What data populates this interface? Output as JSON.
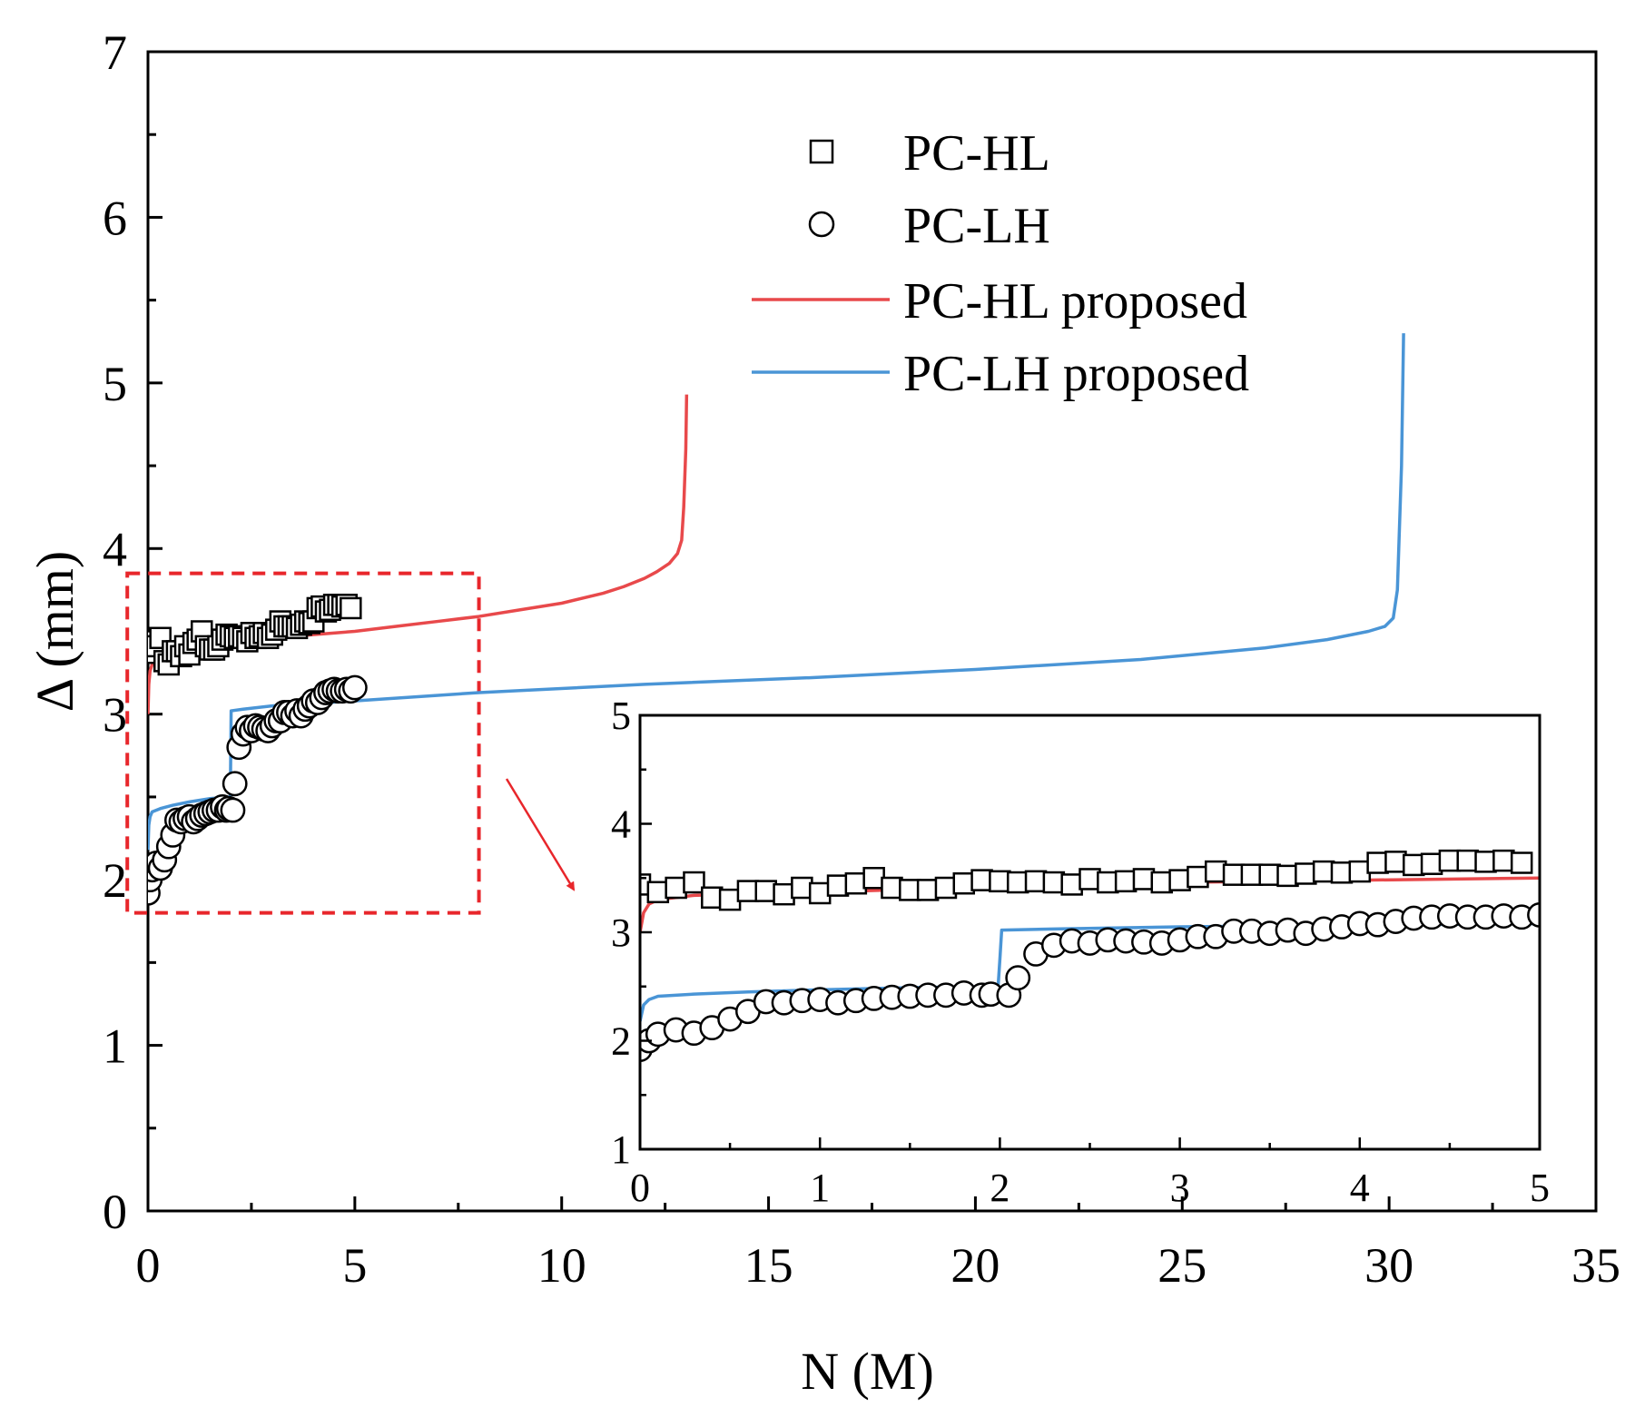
{
  "chart_data": {
    "type": "scatter",
    "main": {
      "xlabel": "N (M)",
      "ylabel": "Δ (mm)",
      "xlim": [
        0,
        35
      ],
      "ylim": [
        0,
        7
      ],
      "x_ticks": [
        "0",
        "5",
        "10",
        "15",
        "20",
        "25",
        "30",
        "35"
      ],
      "y_ticks": [
        "0",
        "1",
        "2",
        "3",
        "4",
        "5",
        "6",
        "7"
      ],
      "legend": {
        "position": "top-right",
        "entries": [
          {
            "label": "PC-HL",
            "marker": "square"
          },
          {
            "label": "PC-LH",
            "marker": "circle"
          },
          {
            "label": "PC-HL proposed",
            "marker": "line",
            "color": "#e8494b"
          },
          {
            "label": "PC-LH proposed",
            "marker": "line",
            "color": "#4a95d6"
          }
        ]
      }
    },
    "inset": {
      "xlim": [
        0,
        5
      ],
      "ylim": [
        1,
        5
      ],
      "x_ticks": [
        "0",
        "1",
        "2",
        "3",
        "4",
        "5"
      ],
      "y_ticks": [
        "1",
        "2",
        "3",
        "4",
        "5"
      ]
    },
    "zoom_box": {
      "x_range": [
        -0.5,
        8
      ],
      "y_range": [
        1.8,
        3.85
      ],
      "color": "#e8262b"
    },
    "series": [
      {
        "name": "PC-HL",
        "kind": "marker",
        "marker": "square",
        "x": [
          0.0,
          0.1,
          0.2,
          0.3,
          0.4,
          0.5,
          0.6,
          0.7,
          0.8,
          0.9,
          1.0,
          1.1,
          1.2,
          1.3,
          1.4,
          1.5,
          1.6,
          1.7,
          1.8,
          1.9,
          2.0,
          2.1,
          2.2,
          2.3,
          2.4,
          2.5,
          2.6,
          2.7,
          2.8,
          2.9,
          3.0,
          3.1,
          3.2,
          3.3,
          3.4,
          3.5,
          3.6,
          3.7,
          3.8,
          3.9,
          4.0,
          4.1,
          4.2,
          4.3,
          4.4,
          4.5,
          4.6,
          4.7,
          4.8,
          4.9
        ],
        "y": [
          3.44,
          3.37,
          3.41,
          3.46,
          3.32,
          3.3,
          3.38,
          3.38,
          3.35,
          3.41,
          3.36,
          3.43,
          3.45,
          3.5,
          3.41,
          3.39,
          3.39,
          3.41,
          3.45,
          3.48,
          3.47,
          3.46,
          3.47,
          3.46,
          3.44,
          3.49,
          3.46,
          3.47,
          3.49,
          3.46,
          3.48,
          3.51,
          3.56,
          3.53,
          3.53,
          3.53,
          3.52,
          3.54,
          3.56,
          3.55,
          3.56,
          3.64,
          3.65,
          3.62,
          3.63,
          3.66,
          3.66,
          3.65,
          3.66,
          3.64
        ]
      },
      {
        "name": "PC-LH",
        "kind": "marker",
        "marker": "circle",
        "x": [
          0.0,
          0.05,
          0.1,
          0.2,
          0.3,
          0.4,
          0.5,
          0.6,
          0.7,
          0.8,
          0.9,
          1.0,
          1.1,
          1.2,
          1.3,
          1.4,
          1.5,
          1.6,
          1.7,
          1.8,
          1.9,
          1.95,
          2.05,
          2.1,
          2.2,
          2.3,
          2.4,
          2.5,
          2.6,
          2.7,
          2.8,
          2.9,
          3.0,
          3.1,
          3.2,
          3.3,
          3.4,
          3.5,
          3.6,
          3.7,
          3.8,
          3.9,
          4.0,
          4.1,
          4.2,
          4.3,
          4.4,
          4.5,
          4.6,
          4.7,
          4.8,
          4.9,
          5.0
        ],
        "y": [
          1.92,
          2.0,
          2.06,
          2.1,
          2.07,
          2.12,
          2.2,
          2.27,
          2.36,
          2.35,
          2.37,
          2.38,
          2.35,
          2.37,
          2.39,
          2.4,
          2.41,
          2.42,
          2.42,
          2.44,
          2.42,
          2.43,
          2.42,
          2.58,
          2.8,
          2.88,
          2.92,
          2.9,
          2.93,
          2.92,
          2.91,
          2.9,
          2.93,
          2.96,
          2.96,
          3.01,
          3.01,
          2.99,
          3.02,
          2.99,
          3.03,
          3.05,
          3.08,
          3.07,
          3.1,
          3.13,
          3.14,
          3.15,
          3.14,
          3.14,
          3.15,
          3.14,
          3.16
        ]
      },
      {
        "name": "PC-HL proposed",
        "kind": "line",
        "color": "#e8494b",
        "x": [
          0.0,
          0.02,
          0.05,
          0.1,
          0.3,
          0.7,
          1.0,
          2.0,
          3.0,
          4.0,
          5.0,
          6.0,
          7.0,
          8.0,
          9.0,
          10.0,
          11.0,
          11.5,
          12.0,
          12.3,
          12.6,
          12.8,
          12.9,
          12.95,
          13.0,
          13.02
        ],
        "y": [
          3.0,
          3.18,
          3.26,
          3.3,
          3.34,
          3.36,
          3.37,
          3.42,
          3.46,
          3.48,
          3.5,
          3.53,
          3.56,
          3.59,
          3.63,
          3.67,
          3.73,
          3.77,
          3.82,
          3.86,
          3.91,
          3.97,
          4.05,
          4.25,
          4.6,
          4.93
        ]
      },
      {
        "name": "PC-LH proposed",
        "kind": "line",
        "color": "#4a95d6",
        "x": [
          0.0,
          0.02,
          0.05,
          0.1,
          0.3,
          0.6,
          1.0,
          1.5,
          1.99,
          2.0,
          2.01,
          2.3,
          3.0,
          5.0,
          8.0,
          12.0,
          16.0,
          20.0,
          24.0,
          27.0,
          28.5,
          29.5,
          29.9,
          30.1,
          30.2,
          30.3,
          30.35
        ],
        "y": [
          2.18,
          2.33,
          2.38,
          2.41,
          2.43,
          2.45,
          2.47,
          2.49,
          2.5,
          2.75,
          3.02,
          3.03,
          3.05,
          3.08,
          3.13,
          3.18,
          3.22,
          3.27,
          3.33,
          3.4,
          3.45,
          3.5,
          3.53,
          3.58,
          3.75,
          4.5,
          5.3
        ]
      }
    ]
  }
}
